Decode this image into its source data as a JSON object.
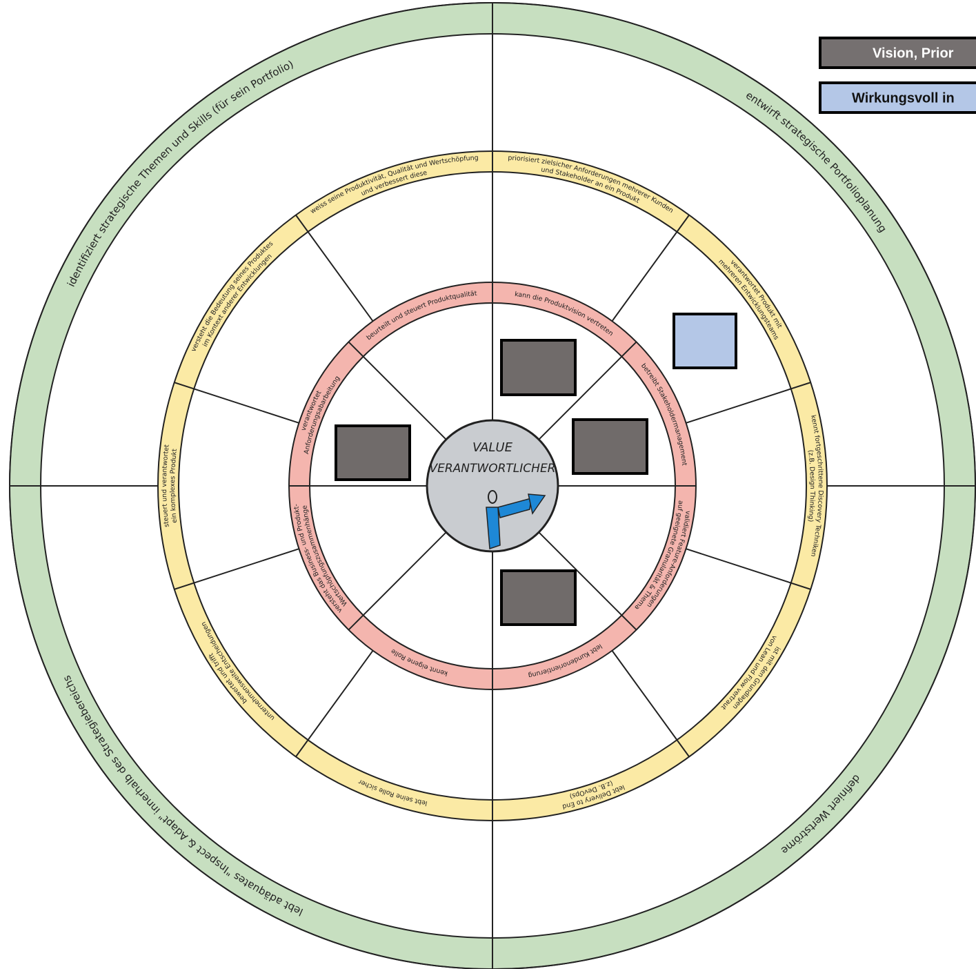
{
  "center": {
    "lines": [
      "VALUE",
      "VERANTWORTLICHER"
    ]
  },
  "outer_ring": [
    "entwirft strategische Portfolioplanung",
    "definiert Wertströme",
    "lebt adäquates \"Inspect & Adapt\" innerhalb des Strategiebereichs",
    "identifiziert strategische Themen und Skills (für sein Portfolio)"
  ],
  "middle_ring": [
    [
      "priorisiert zielsicher Anforderungen mehrerer Kunden",
      "und Stakeholder an ein Produkt"
    ],
    [
      "verantwortet Produkt mit",
      "mehreren Entwicklungsteams"
    ],
    [
      "kennt fortgeschrittene Discovery Techniken",
      "(z.B. Design Thinking)"
    ],
    [
      "ist mit den Grundlagen",
      "von Lean und Flow vertraut"
    ],
    [
      "lebt Delivery to End",
      "(z.B. DevOps)"
    ],
    [
      "lebt seine Rolle sicher"
    ],
    [
      "bewertet und trifft",
      "unternehmensweite Entscheidungen"
    ],
    [
      "steuert und verantwortet",
      "ein komplexes Produkt"
    ],
    [
      "versteht die Bedeutung seines Produktes",
      "im Kontext anderer Entwicklungen"
    ],
    [
      "weiss seine Produktivität, Qualität und Wertschöpfung",
      "und verbessert diese"
    ]
  ],
  "inner_ring": [
    [
      "kann die Produktvision vertreten"
    ],
    [
      "betreibt Stakeholdermanagement"
    ],
    [
      "validiert Feature-Anforderungen",
      "auf geeignete Granularität & Thema"
    ],
    [
      "lebt Kundenorientierung"
    ],
    [
      "kennt eigene Rolle"
    ],
    [
      "versteht das Business- und Produkt-",
      "Wertschöpfungszusammenhänge"
    ],
    [
      "verantwortet",
      "Anforderungsabarbeitung"
    ],
    [
      "beurteilt und steuert Produktqualität"
    ]
  ],
  "legend": [
    "Vision, Prior",
    "Wirkungsvoll in"
  ]
}
